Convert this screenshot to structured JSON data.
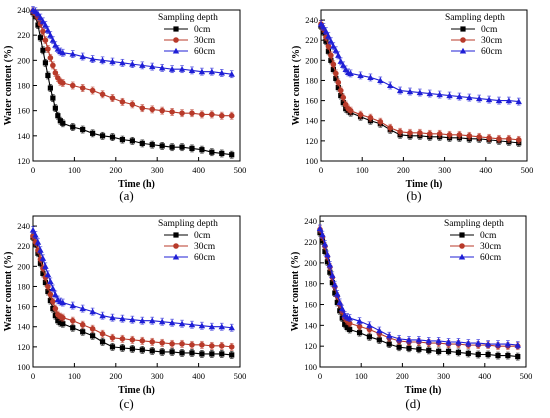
{
  "chart_data": [
    {
      "type": "line",
      "panel_label": "(a)",
      "xlabel": "Time (h)",
      "ylabel": "Water content (%)",
      "xlim": [
        0,
        500
      ],
      "ylim": [
        120,
        240
      ],
      "xticks": [
        0,
        100,
        200,
        300,
        400,
        500
      ],
      "yticks": [
        120,
        140,
        160,
        180,
        200,
        220,
        240
      ],
      "legend_title": "Sampling depth",
      "legend_position": "top-right",
      "x": [
        0,
        6,
        12,
        18,
        24,
        30,
        36,
        42,
        48,
        54,
        60,
        66,
        72,
        96,
        120,
        144,
        168,
        192,
        216,
        240,
        264,
        288,
        312,
        336,
        360,
        384,
        408,
        432,
        456,
        480
      ],
      "series": [
        {
          "name": "0cm",
          "marker": "square",
          "color": "#000000",
          "values": [
            238,
            235,
            228,
            218,
            208,
            198,
            188,
            178,
            170,
            162,
            156,
            152,
            150,
            147,
            145,
            142,
            140,
            139,
            137,
            136,
            134,
            133,
            132,
            131,
            131,
            130,
            129,
            127,
            126,
            125
          ]
        },
        {
          "name": "30cm",
          "marker": "circle",
          "color": "#b83a2a",
          "values": [
            239,
            237,
            234,
            229,
            223,
            216,
            209,
            202,
            196,
            190,
            186,
            183,
            182,
            180,
            178,
            176,
            173,
            170,
            167,
            165,
            162,
            161,
            160,
            159,
            158,
            158,
            157,
            157,
            156,
            156
          ]
        },
        {
          "name": "60cm",
          "marker": "triangle",
          "color": "#1f1fd6",
          "values": [
            240,
            239,
            237,
            234,
            231,
            228,
            224,
            220,
            216,
            212,
            209,
            207,
            206,
            205,
            203,
            201,
            200,
            199,
            198,
            197,
            196,
            195,
            194,
            193,
            193,
            192,
            191,
            191,
            190,
            189
          ]
        }
      ]
    },
    {
      "type": "line",
      "panel_label": "(b)",
      "xlabel": "Time (h)",
      "ylabel": "Water content (%)",
      "xlim": [
        0,
        500
      ],
      "ylim": [
        100,
        250
      ],
      "xticks": [
        0,
        100,
        200,
        300,
        400,
        500
      ],
      "yticks": [
        100,
        120,
        140,
        160,
        180,
        200,
        220,
        240
      ],
      "legend_title": "Sampling depth",
      "legend_position": "top-right",
      "x": [
        0,
        6,
        12,
        18,
        24,
        30,
        36,
        42,
        48,
        54,
        60,
        66,
        72,
        96,
        120,
        144,
        168,
        192,
        216,
        240,
        264,
        288,
        312,
        336,
        360,
        384,
        408,
        432,
        456,
        480
      ],
      "series": [
        {
          "name": "0cm",
          "marker": "square",
          "color": "#000000",
          "values": [
            234,
            228,
            219,
            209,
            200,
            191,
            182,
            173,
            165,
            158,
            152,
            150,
            148,
            144,
            140,
            137,
            131,
            126,
            125,
            125,
            124,
            124,
            123,
            123,
            122,
            122,
            121,
            120,
            119,
            118
          ]
        },
        {
          "name": "30cm",
          "marker": "circle",
          "color": "#b83a2a",
          "values": [
            236,
            231,
            223,
            214,
            205,
            196,
            187,
            178,
            170,
            163,
            156,
            152,
            150,
            146,
            143,
            139,
            133,
            129,
            128,
            128,
            127,
            127,
            126,
            126,
            125,
            124,
            123,
            122,
            122,
            121
          ]
        },
        {
          "name": "60cm",
          "marker": "triangle",
          "color": "#1f1fd6",
          "values": [
            236,
            233,
            229,
            224,
            219,
            214,
            210,
            205,
            199,
            195,
            191,
            188,
            187,
            185,
            183,
            180,
            175,
            170,
            169,
            168,
            167,
            166,
            165,
            164,
            163,
            162,
            161,
            160,
            160,
            159
          ]
        }
      ]
    },
    {
      "type": "line",
      "panel_label": "(c)",
      "xlabel": "Time (h)",
      "ylabel": "Water content (%)",
      "xlim": [
        0,
        500
      ],
      "ylim": [
        100,
        250
      ],
      "xticks": [
        0,
        100,
        200,
        300,
        400,
        500
      ],
      "yticks": [
        100,
        120,
        140,
        160,
        180,
        200,
        220,
        240
      ],
      "legend_title": "Sampling depth",
      "legend_position": "top-right",
      "x": [
        0,
        6,
        12,
        18,
        24,
        30,
        36,
        42,
        48,
        54,
        60,
        66,
        72,
        96,
        120,
        144,
        168,
        192,
        216,
        240,
        264,
        288,
        312,
        336,
        360,
        384,
        408,
        432,
        456,
        480
      ],
      "series": [
        {
          "name": "0cm",
          "marker": "square",
          "color": "#000000",
          "values": [
            229,
            222,
            213,
            203,
            193,
            184,
            175,
            166,
            158,
            151,
            146,
            144,
            143,
            139,
            135,
            131,
            125,
            120,
            119,
            118,
            117,
            116,
            115,
            115,
            114,
            114,
            113,
            113,
            113,
            112
          ]
        },
        {
          "name": "30cm",
          "marker": "circle",
          "color": "#b83a2a",
          "values": [
            230,
            224,
            216,
            207,
            198,
            189,
            180,
            172,
            165,
            158,
            152,
            150,
            149,
            146,
            142,
            138,
            133,
            129,
            128,
            127,
            126,
            125,
            124,
            123,
            123,
            122,
            122,
            121,
            121,
            120
          ]
        },
        {
          "name": "60cm",
          "marker": "triangle",
          "color": "#1f1fd6",
          "values": [
            236,
            231,
            224,
            216,
            208,
            200,
            192,
            185,
            178,
            172,
            167,
            165,
            164,
            161,
            158,
            155,
            151,
            149,
            148,
            147,
            146,
            146,
            145,
            144,
            143,
            142,
            141,
            140,
            140,
            139
          ]
        }
      ]
    },
    {
      "type": "line",
      "panel_label": "(d)",
      "xlabel": "Time (h)",
      "ylabel": "Water content (%)",
      "xlim": [
        0,
        500
      ],
      "ylim": [
        100,
        245
      ],
      "xticks": [
        0,
        100,
        200,
        300,
        400,
        500
      ],
      "yticks": [
        100,
        120,
        140,
        160,
        180,
        200,
        220,
        240
      ],
      "legend_title": "Sampling depth",
      "legend_position": "top-right",
      "x": [
        0,
        6,
        12,
        18,
        24,
        30,
        36,
        42,
        48,
        54,
        60,
        66,
        72,
        96,
        120,
        144,
        168,
        192,
        216,
        240,
        264,
        288,
        312,
        336,
        360,
        384,
        408,
        432,
        456,
        480
      ],
      "series": [
        {
          "name": "0cm",
          "marker": "square",
          "color": "#000000",
          "values": [
            229,
            221,
            211,
            201,
            191,
            181,
            171,
            162,
            154,
            147,
            141,
            138,
            136,
            133,
            129,
            126,
            122,
            119,
            118,
            117,
            116,
            115,
            115,
            114,
            113,
            112,
            112,
            111,
            111,
            110
          ]
        },
        {
          "name": "30cm",
          "marker": "circle",
          "color": "#b83a2a",
          "values": [
            232,
            225,
            216,
            206,
            196,
            186,
            177,
            168,
            160,
            153,
            147,
            144,
            142,
            139,
            136,
            132,
            128,
            125,
            124,
            124,
            123,
            123,
            122,
            122,
            121,
            121,
            121,
            120,
            120,
            120
          ]
        },
        {
          "name": "60cm",
          "marker": "triangle",
          "color": "#1f1fd6",
          "values": [
            233,
            227,
            218,
            208,
            198,
            188,
            179,
            170,
            162,
            156,
            150,
            148,
            147,
            144,
            140,
            135,
            130,
            127,
            126,
            126,
            125,
            125,
            124,
            124,
            123,
            123,
            122,
            122,
            122,
            121
          ]
        }
      ]
    }
  ]
}
